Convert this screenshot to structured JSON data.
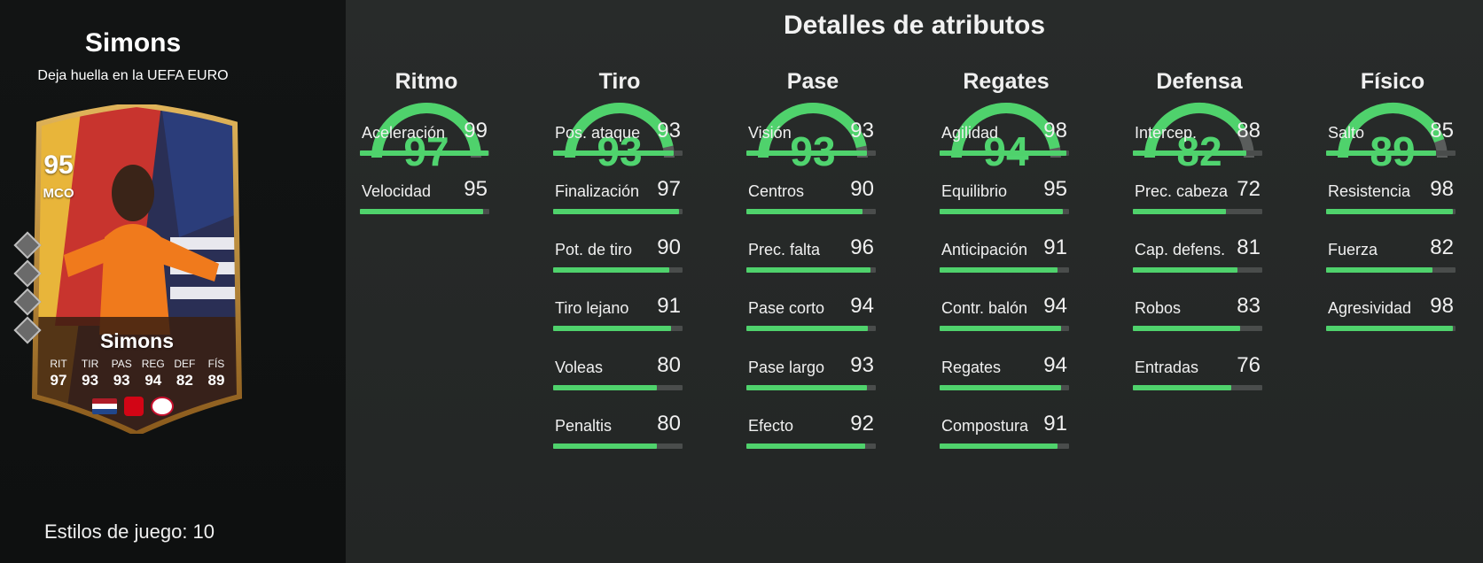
{
  "player": {
    "name": "Simons",
    "subtitle": "Deja huella en la UEFA EURO",
    "styles_label": "Estilos de juego: 10"
  },
  "card": {
    "overall": "95",
    "position": "MCO",
    "name": "Simons",
    "stats": [
      {
        "label": "RIT",
        "value": "97"
      },
      {
        "label": "TIR",
        "value": "93"
      },
      {
        "label": "PAS",
        "value": "93"
      },
      {
        "label": "REG",
        "value": "94"
      },
      {
        "label": "DEF",
        "value": "82"
      },
      {
        "label": "FÍS",
        "value": "89"
      }
    ]
  },
  "colors": {
    "accent": "#4fd26c",
    "bar_track": "#4a4d4c",
    "gauge_track": "#5a5d5c",
    "card_gold": "#c99a3a",
    "jersey_orange": "#f07a1c"
  },
  "section_title": "Detalles de atributos",
  "categories": [
    {
      "name": "Ritmo",
      "value": 97,
      "attributes": [
        {
          "name": "Aceleración",
          "value": 99
        },
        {
          "name": "Velocidad",
          "value": 95
        }
      ]
    },
    {
      "name": "Tiro",
      "value": 93,
      "attributes": [
        {
          "name": "Pos. ataque",
          "value": 93
        },
        {
          "name": "Finalización",
          "value": 97
        },
        {
          "name": "Pot. de tiro",
          "value": 90
        },
        {
          "name": "Tiro lejano",
          "value": 91
        },
        {
          "name": "Voleas",
          "value": 80
        },
        {
          "name": "Penaltis",
          "value": 80
        }
      ]
    },
    {
      "name": "Pase",
      "value": 93,
      "attributes": [
        {
          "name": "Visión",
          "value": 93
        },
        {
          "name": "Centros",
          "value": 90
        },
        {
          "name": "Prec. falta",
          "value": 96
        },
        {
          "name": "Pase corto",
          "value": 94
        },
        {
          "name": "Pase largo",
          "value": 93
        },
        {
          "name": "Efecto",
          "value": 92
        }
      ]
    },
    {
      "name": "Regates",
      "value": 94,
      "attributes": [
        {
          "name": "Agilidad",
          "value": 98
        },
        {
          "name": "Equilibrio",
          "value": 95
        },
        {
          "name": "Anticipación",
          "value": 91
        },
        {
          "name": "Contr. balón",
          "value": 94
        },
        {
          "name": "Regates",
          "value": 94
        },
        {
          "name": "Compostura",
          "value": 91
        }
      ]
    },
    {
      "name": "Defensa",
      "value": 82,
      "attributes": [
        {
          "name": "Intercep.",
          "value": 88
        },
        {
          "name": "Prec. cabeza",
          "value": 72
        },
        {
          "name": "Cap. defens.",
          "value": 81
        },
        {
          "name": "Robos",
          "value": 83
        },
        {
          "name": "Entradas",
          "value": 76
        }
      ]
    },
    {
      "name": "Físico",
      "value": 89,
      "attributes": [
        {
          "name": "Salto",
          "value": 85
        },
        {
          "name": "Resistencia",
          "value": 98
        },
        {
          "name": "Fuerza",
          "value": 82
        },
        {
          "name": "Agresividad",
          "value": 98
        }
      ]
    }
  ]
}
